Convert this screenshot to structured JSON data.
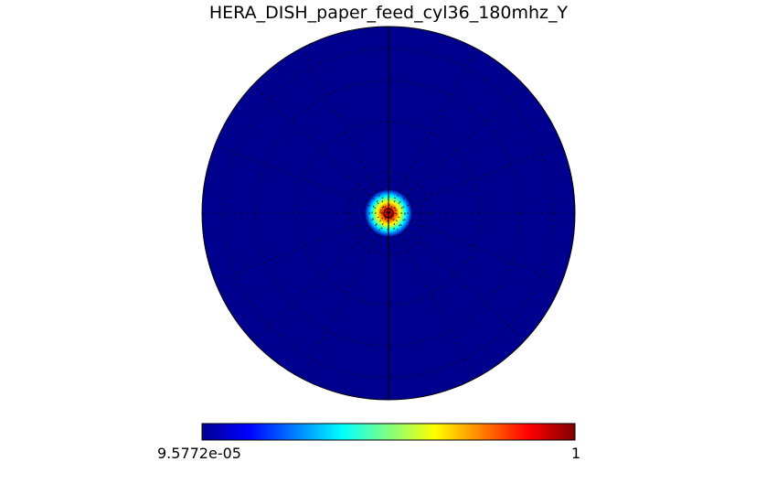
{
  "chart_data": {
    "type": "heatmap",
    "projection": "orthographic",
    "title": "HERA_DISH_paper_feed_cyl36_180mhz_Y",
    "colormap": "jet",
    "colorbar": {
      "min_label": "9.5772e-05",
      "max_label": "1",
      "min": 9.5772e-05,
      "max": 1,
      "placement": "bottom"
    },
    "grid": true,
    "beam": {
      "peak": 1,
      "peak_location": "center",
      "shape": "compact circular main lobe"
    },
    "colors": {
      "background_field": "#00008f",
      "ring_cyan": "#00ffff",
      "ring_yellow": "#ffff00",
      "ring_red": "#ff0000",
      "peak": "#800000"
    }
  }
}
